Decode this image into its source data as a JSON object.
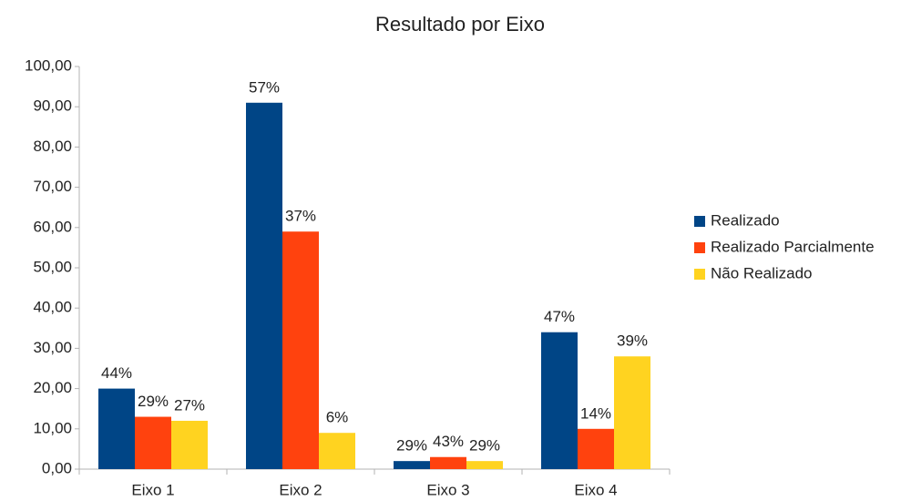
{
  "chart_data": {
    "type": "bar",
    "title": "Resultado por Eixo",
    "categories": [
      "Eixo 1",
      "Eixo 2",
      "Eixo 3",
      "Eixo 4"
    ],
    "series": [
      {
        "name": "Realizado",
        "color": "#004586",
        "values": [
          20,
          91,
          2,
          34
        ],
        "data_labels": [
          "44%",
          "57%",
          "29%",
          "47%"
        ]
      },
      {
        "name": "Realizado Parcialmente",
        "color": "#ff420e",
        "values": [
          13,
          59,
          3,
          10
        ],
        "data_labels": [
          "29%",
          "37%",
          "43%",
          "14%"
        ]
      },
      {
        "name": "Não Realizado",
        "color": "#ffd320",
        "values": [
          12,
          9,
          2,
          28
        ],
        "data_labels": [
          "27%",
          "6%",
          "29%",
          "39%"
        ]
      }
    ],
    "ylim": [
      0,
      100
    ],
    "yticks": [
      {
        "value": 0,
        "label": "0,00"
      },
      {
        "value": 10,
        "label": "10,00"
      },
      {
        "value": 20,
        "label": "20,00"
      },
      {
        "value": 30,
        "label": "30,00"
      },
      {
        "value": 40,
        "label": "40,00"
      },
      {
        "value": 50,
        "label": "50,00"
      },
      {
        "value": 60,
        "label": "60,00"
      },
      {
        "value": 70,
        "label": "70,00"
      },
      {
        "value": 80,
        "label": "80,00"
      },
      {
        "value": 90,
        "label": "90,00"
      },
      {
        "value": 100,
        "label": "100,00"
      }
    ],
    "grid": false,
    "legend": "right"
  }
}
